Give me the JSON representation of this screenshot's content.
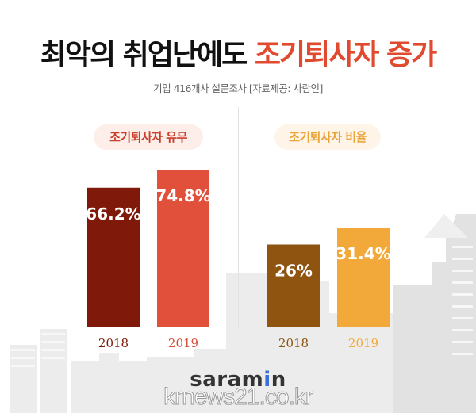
{
  "header": {
    "title_main": "최악의 취업난에도",
    "title_accent": "조기퇴사자 증가",
    "subtitle": "기업 416개사 설문조사  [자료제공: 사람인]"
  },
  "footer": {
    "logo_text_pre": "saram",
    "logo_text_i": "i",
    "logo_text_post": "n",
    "watermark": "krnews21.co.kr"
  },
  "colors": {
    "title_accent": "#e04a2f",
    "left_2018": "#7f1a0a",
    "left_2019": "#e0503a",
    "right_2018": "#8e5410",
    "right_2019": "#f2a93a"
  },
  "chart_data": [
    {
      "type": "bar",
      "title": "조기퇴사자 유무",
      "categories": [
        "2018",
        "2019"
      ],
      "values": [
        66.2,
        74.8
      ],
      "labels": [
        "66.2%",
        "74.8%"
      ],
      "colors": [
        "#7f1a0a",
        "#e0503a"
      ],
      "ylim": [
        0,
        100
      ],
      "grid": false
    },
    {
      "type": "bar",
      "title": "조기퇴사자 비율",
      "categories": [
        "2018",
        "2019"
      ],
      "values": [
        26,
        31.4
      ],
      "labels": [
        "26%",
        "31.4%"
      ],
      "colors": [
        "#8e5410",
        "#f2a93a"
      ],
      "ylim": [
        0,
        40
      ],
      "grid": false
    }
  ]
}
